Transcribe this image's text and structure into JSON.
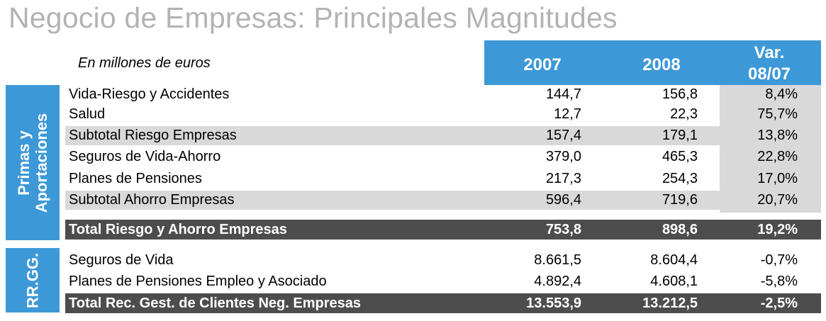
{
  "title": "Negocio de Empresas: Principales Magnitudes",
  "units": "En millones de euros",
  "columns": {
    "y1": "2007",
    "y2": "2008",
    "var_line1": "Var.",
    "var_line2": "08/07"
  },
  "sections": [
    {
      "label_line1": "Primas y",
      "label_line2": "Aportaciones"
    },
    {
      "label_line1": "RR.GG.",
      "label_line2": ""
    }
  ],
  "rows": [
    {
      "label": "Vida-Riesgo y Accidentes",
      "y1": "144,7",
      "y2": "156,8",
      "var": "8,4%"
    },
    {
      "label": "Salud",
      "y1": "12,7",
      "y2": "22,3",
      "var": "75,7%"
    },
    {
      "label": "Subtotal Riesgo Empresas",
      "y1": "157,4",
      "y2": "179,1",
      "var": "13,8%"
    },
    {
      "label": "Seguros de Vida-Ahorro",
      "y1": "379,0",
      "y2": "465,3",
      "var": "22,8%"
    },
    {
      "label": "Planes de Pensiones",
      "y1": "217,3",
      "y2": "254,3",
      "var": "17,0%"
    },
    {
      "label": "Subtotal Ahorro Empresas",
      "y1": "596,4",
      "y2": "719,6",
      "var": "20,7%"
    },
    {
      "label": "Total Riesgo y Ahorro Empresas",
      "y1": "753,8",
      "y2": "898,6",
      "var": "19,2%"
    },
    {
      "label": "Seguros de Vida",
      "y1": "8.661,5",
      "y2": "8.604,4",
      "var": "-0,7%"
    },
    {
      "label": "Planes de Pensiones Empleo y Asociado",
      "y1": "4.892,4",
      "y2": "4.608,1",
      "var": "-5,8%"
    },
    {
      "label": "Total Rec. Gest. de Clientes Neg. Empresas",
      "y1": "13.553,9",
      "y2": "13.212,5",
      "var": "-2,5%"
    }
  ],
  "colors": {
    "accent": "#3d98d7",
    "shade": "#d9d9d9",
    "total": "#4d4d4d",
    "title": "#b3b3b3"
  }
}
